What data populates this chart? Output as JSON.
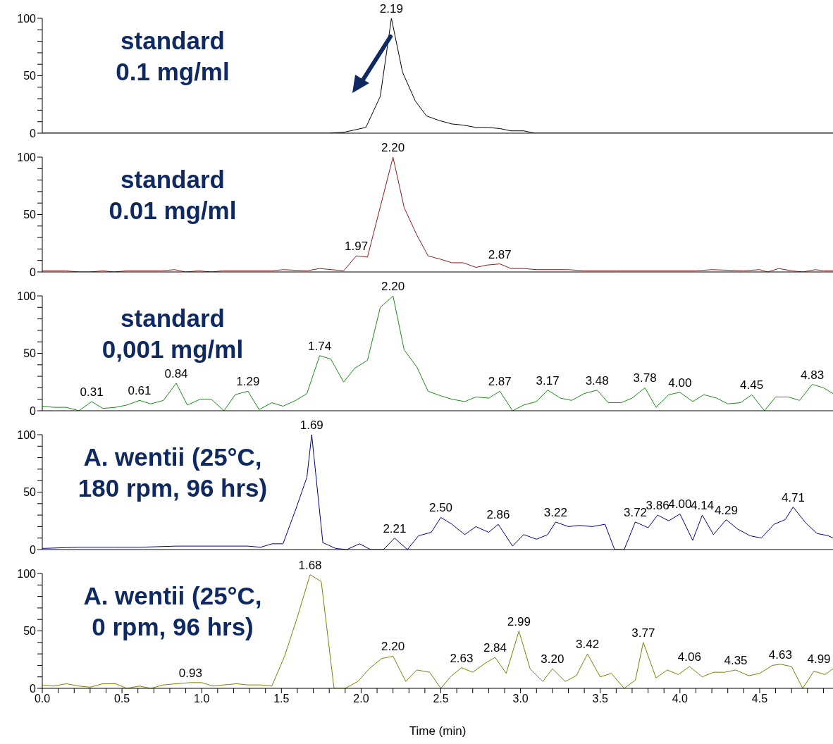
{
  "chart_data": [
    {
      "type": "line",
      "title": "standard\n0.1 mg/ml",
      "tick_labels": "y",
      "xlim": [
        0,
        4.96
      ],
      "ylim": [
        0,
        100
      ],
      "yticks": [
        0,
        {
          "value": 10,
          "label": null
        },
        {
          "value": 20,
          "label": null
        },
        {
          "value": 30,
          "label": null
        },
        {
          "value": 40,
          "label": null
        },
        50,
        {
          "value": 60,
          "label": null
        },
        {
          "value": 70,
          "label": null
        },
        {
          "value": 80,
          "label": null
        },
        {
          "value": 90,
          "label": null
        },
        100
      ],
      "marker": "none",
      "series": [
        {
          "color": "#000000",
          "x": [
            0,
            1.8,
            1.9,
            2.03,
            2.12,
            2.19,
            2.26,
            2.34,
            2.41,
            2.49,
            2.57,
            2.64,
            2.72,
            2.79,
            2.87,
            2.94,
            3.02,
            3.09,
            4.96
          ],
          "values": [
            0,
            0,
            1,
            5,
            32,
            100,
            53,
            28,
            15,
            11,
            8,
            7,
            5,
            5,
            4,
            2,
            2,
            0,
            0
          ]
        }
      ],
      "annotations": [
        {
          "text": "2.19",
          "x": 2.19,
          "y": 100
        }
      ]
    },
    {
      "type": "line",
      "title": "standard\n0.01 mg/ml",
      "tick_labels": "y",
      "xlim": [
        0,
        4.96
      ],
      "ylim": [
        0,
        100
      ],
      "yticks": [
        0,
        {
          "value": 10,
          "label": null
        },
        {
          "value": 20,
          "label": null
        },
        {
          "value": 30,
          "label": null
        },
        {
          "value": 40,
          "label": null
        },
        50,
        {
          "value": 60,
          "label": null
        },
        {
          "value": 70,
          "label": null
        },
        {
          "value": 80,
          "label": null
        },
        {
          "value": 90,
          "label": null
        },
        100
      ],
      "marker": "none",
      "series": [
        {
          "color": "#8b1a1a",
          "x": [
            0,
            0.15,
            0.23,
            0.3,
            0.38,
            0.45,
            0.53,
            0.75,
            0.83,
            0.9,
            0.98,
            1.06,
            1.13,
            1.44,
            1.51,
            1.66,
            1.74,
            1.89,
            1.97,
            2.04,
            2.2,
            2.27,
            2.35,
            2.42,
            2.5,
            2.57,
            2.64,
            2.72,
            2.79,
            2.87,
            2.94,
            3.02,
            3.1,
            3.3,
            3.4,
            3.6,
            4.1,
            4.2,
            4.4,
            4.5,
            4.55,
            4.62,
            4.7,
            4.77,
            4.85,
            4.9,
            4.96
          ],
          "values": [
            1,
            1,
            0,
            0,
            1,
            0,
            1,
            1,
            2,
            0,
            1,
            0,
            1,
            1,
            2,
            1,
            3,
            1,
            14,
            13,
            100,
            56,
            32,
            14,
            11,
            8,
            8,
            4,
            6,
            7,
            3,
            3,
            2,
            2,
            1,
            1,
            1,
            2,
            1,
            2,
            0,
            3,
            1,
            0,
            2,
            1,
            1
          ]
        }
      ],
      "annotations": [
        {
          "text": "1.97",
          "x": 1.97,
          "y": 14
        },
        {
          "text": "2.20",
          "x": 2.2,
          "y": 100
        },
        {
          "text": "2.87",
          "x": 2.87,
          "y": 7
        }
      ]
    },
    {
      "type": "line",
      "title": "standard\n0,001 mg/ml",
      "tick_labels": "y",
      "xlim": [
        0,
        4.96
      ],
      "ylim": [
        0,
        100
      ],
      "yticks": [
        0,
        {
          "value": 10,
          "label": null
        },
        {
          "value": 20,
          "label": null
        },
        {
          "value": 30,
          "label": null
        },
        {
          "value": 40,
          "label": null
        },
        50,
        {
          "value": 60,
          "label": null
        },
        {
          "value": 70,
          "label": null
        },
        {
          "value": 80,
          "label": null
        },
        {
          "value": 90,
          "label": null
        },
        100
      ],
      "marker": "none",
      "series": [
        {
          "color": "#1a8a1a",
          "x": [
            0,
            0.07,
            0.15,
            0.23,
            0.31,
            0.38,
            0.46,
            0.53,
            0.61,
            0.68,
            0.76,
            0.84,
            0.91,
            0.99,
            1.06,
            1.14,
            1.21,
            1.29,
            1.36,
            1.44,
            1.51,
            1.59,
            1.66,
            1.74,
            1.81,
            1.89,
            1.96,
            2.04,
            2.12,
            2.2,
            2.27,
            2.35,
            2.42,
            2.5,
            2.57,
            2.65,
            2.72,
            2.8,
            2.87,
            2.95,
            3.02,
            3.1,
            3.17,
            3.25,
            3.32,
            3.4,
            3.48,
            3.55,
            3.63,
            3.7,
            3.78,
            3.85,
            3.93,
            4.0,
            4.08,
            4.15,
            4.23,
            4.3,
            4.38,
            4.45,
            4.53,
            4.6,
            4.68,
            4.75,
            4.83,
            4.9,
            4.96
          ],
          "values": [
            4,
            3,
            3,
            0,
            8,
            2,
            3,
            5,
            9,
            6,
            9,
            24,
            5,
            10,
            10,
            0,
            14,
            17,
            1,
            7,
            4,
            9,
            15,
            48,
            45,
            25,
            37,
            44,
            90,
            100,
            53,
            38,
            17,
            13,
            10,
            8,
            12,
            11,
            17,
            0,
            5,
            8,
            18,
            11,
            9,
            15,
            18,
            7,
            7,
            11,
            20,
            3,
            14,
            16,
            8,
            14,
            11,
            6,
            7,
            14,
            0,
            12,
            12,
            9,
            23,
            20,
            15
          ]
        }
      ],
      "annotations": [
        {
          "text": "0.31",
          "x": 0.31,
          "y": 8
        },
        {
          "text": "0.61",
          "x": 0.61,
          "y": 9
        },
        {
          "text": "0.84",
          "x": 0.84,
          "y": 24
        },
        {
          "text": "1.29",
          "x": 1.29,
          "y": 17
        },
        {
          "text": "1.74",
          "x": 1.74,
          "y": 48
        },
        {
          "text": "2.20",
          "x": 2.2,
          "y": 100
        },
        {
          "text": "2.87",
          "x": 2.87,
          "y": 17
        },
        {
          "text": "3.17",
          "x": 3.17,
          "y": 18
        },
        {
          "text": "3.48",
          "x": 3.48,
          "y": 18
        },
        {
          "text": "3.78",
          "x": 3.78,
          "y": 20
        },
        {
          "text": "4.00",
          "x": 4.0,
          "y": 16
        },
        {
          "text": "4.45",
          "x": 4.45,
          "y": 14
        },
        {
          "text": "4.83",
          "x": 4.83,
          "y": 23
        }
      ]
    },
    {
      "type": "line",
      "title": "A. wentii (25°C,\n180 rpm, 96 hrs)",
      "tick_labels": "y",
      "xlim": [
        0,
        4.96
      ],
      "ylim": [
        0,
        100
      ],
      "yticks": [
        0,
        {
          "value": 10,
          "label": null
        },
        {
          "value": 20,
          "label": null
        },
        {
          "value": 30,
          "label": null
        },
        {
          "value": 40,
          "label": null
        },
        50,
        {
          "value": 60,
          "label": null
        },
        {
          "value": 70,
          "label": null
        },
        {
          "value": 80,
          "label": null
        },
        {
          "value": 90,
          "label": null
        },
        100
      ],
      "marker": "none",
      "series": [
        {
          "color": "#00008b",
          "x": [
            0,
            0.23,
            0.45,
            0.61,
            0.84,
            1.06,
            1.29,
            1.37,
            1.44,
            1.51,
            1.59,
            1.66,
            1.69,
            1.76,
            1.84,
            1.91,
            1.99,
            2.06,
            2.14,
            2.21,
            2.29,
            2.36,
            2.44,
            2.5,
            2.57,
            2.65,
            2.72,
            2.8,
            2.86,
            2.95,
            3.02,
            3.1,
            3.17,
            3.22,
            3.3,
            3.37,
            3.45,
            3.53,
            3.59,
            3.65,
            3.72,
            3.8,
            3.86,
            3.93,
            4.0,
            4.08,
            4.14,
            4.21,
            4.29,
            4.36,
            4.44,
            4.51,
            4.59,
            4.66,
            4.71,
            4.79,
            4.86,
            4.93,
            4.96
          ],
          "values": [
            1,
            2,
            2,
            2,
            3,
            3,
            3,
            2,
            5,
            5,
            35,
            63,
            100,
            6,
            1,
            0,
            5,
            0,
            0,
            10,
            0,
            12,
            15,
            28,
            22,
            13,
            20,
            15,
            22,
            3,
            13,
            9,
            13,
            24,
            20,
            21,
            20,
            22,
            0,
            0,
            24,
            19,
            30,
            25,
            31,
            8,
            30,
            13,
            26,
            18,
            12,
            10,
            22,
            26,
            37,
            23,
            14,
            12,
            10
          ]
        }
      ],
      "annotations": [
        {
          "text": "1.69",
          "x": 1.69,
          "y": 100
        },
        {
          "text": "2.21",
          "x": 2.21,
          "y": 10
        },
        {
          "text": "2.50",
          "x": 2.5,
          "y": 28
        },
        {
          "text": "2.86",
          "x": 2.86,
          "y": 22
        },
        {
          "text": "3.22",
          "x": 3.22,
          "y": 24
        },
        {
          "text": "3.72",
          "x": 3.72,
          "y": 24
        },
        {
          "text": "3.86",
          "x": 3.86,
          "y": 30
        },
        {
          "text": "4.00",
          "x": 4.0,
          "y": 31
        },
        {
          "text": "4.14",
          "x": 4.14,
          "y": 30
        },
        {
          "text": "4.29",
          "x": 4.29,
          "y": 26
        },
        {
          "text": "4.71",
          "x": 4.71,
          "y": 37
        }
      ]
    },
    {
      "type": "line",
      "title": "A. wentii (25°C,\n0 rpm, 96 hrs)",
      "xlabel": "Time (min)",
      "xlim": [
        0,
        4.96
      ],
      "ylim": [
        0,
        100
      ],
      "yticks": [
        0,
        {
          "value": 10,
          "label": null
        },
        {
          "value": 20,
          "label": null
        },
        {
          "value": 30,
          "label": null
        },
        {
          "value": 40,
          "label": null
        },
        50,
        {
          "value": 60,
          "label": null
        },
        {
          "value": 70,
          "label": null
        },
        {
          "value": 80,
          "label": null
        },
        {
          "value": 90,
          "label": null
        },
        100
      ],
      "marker": "none",
      "xticks": [
        {
          "value": 0,
          "label": "0.0"
        },
        {
          "value": 0.1,
          "label": null
        },
        {
          "value": 0.2,
          "label": null
        },
        {
          "value": 0.3,
          "label": null
        },
        {
          "value": 0.4,
          "label": null
        },
        {
          "value": 0.5,
          "label": "0.5"
        },
        {
          "value": 0.6,
          "label": null
        },
        {
          "value": 0.7,
          "label": null
        },
        {
          "value": 0.8,
          "label": null
        },
        {
          "value": 0.9,
          "label": null
        },
        {
          "value": 1,
          "label": "1.0"
        },
        {
          "value": 1.1,
          "label": null
        },
        {
          "value": 1.2,
          "label": null
        },
        {
          "value": 1.3,
          "label": null
        },
        {
          "value": 1.4,
          "label": null
        },
        {
          "value": 1.5,
          "label": "1.5"
        },
        {
          "value": 1.6,
          "label": null
        },
        {
          "value": 1.7,
          "label": null
        },
        {
          "value": 1.8,
          "label": null
        },
        {
          "value": 1.9,
          "label": null
        },
        {
          "value": 2,
          "label": "2.0"
        },
        {
          "value": 2.1,
          "label": null
        },
        {
          "value": 2.2,
          "label": null
        },
        {
          "value": 2.3,
          "label": null
        },
        {
          "value": 2.4,
          "label": null
        },
        {
          "value": 2.5,
          "label": "2.5"
        },
        {
          "value": 2.6,
          "label": null
        },
        {
          "value": 2.7,
          "label": null
        },
        {
          "value": 2.8,
          "label": null
        },
        {
          "value": 2.9,
          "label": null
        },
        {
          "value": 3,
          "label": "3.0"
        },
        {
          "value": 3.1,
          "label": null
        },
        {
          "value": 3.2,
          "label": null
        },
        {
          "value": 3.3,
          "label": null
        },
        {
          "value": 3.4,
          "label": null
        },
        {
          "value": 3.5,
          "label": "3.5"
        },
        {
          "value": 3.6,
          "label": null
        },
        {
          "value": 3.7,
          "label": null
        },
        {
          "value": 3.8,
          "label": null
        },
        {
          "value": 3.9,
          "label": null
        },
        {
          "value": 4,
          "label": "4.0"
        },
        {
          "value": 4.1,
          "label": null
        },
        {
          "value": 4.2,
          "label": null
        },
        {
          "value": 4.3,
          "label": null
        },
        {
          "value": 4.4,
          "label": null
        },
        {
          "value": 4.5,
          "label": "4.5"
        },
        {
          "value": 4.6,
          "label": null
        },
        {
          "value": 4.7,
          "label": null
        },
        {
          "value": 4.8,
          "label": null
        },
        {
          "value": 4.9,
          "label": null
        }
      ],
      "series": [
        {
          "color": "#808000",
          "x": [
            0,
            0.07,
            0.15,
            0.23,
            0.3,
            0.38,
            0.46,
            0.53,
            0.61,
            0.68,
            0.76,
            0.84,
            0.93,
            1.0,
            1.07,
            1.14,
            1.22,
            1.29,
            1.37,
            1.44,
            1.52,
            1.6,
            1.68,
            1.75,
            1.83,
            1.9,
            1.98,
            2.05,
            2.13,
            2.2,
            2.28,
            2.35,
            2.43,
            2.5,
            2.56,
            2.63,
            2.7,
            2.78,
            2.84,
            2.91,
            2.99,
            3.06,
            3.14,
            3.2,
            3.28,
            3.35,
            3.42,
            3.5,
            3.57,
            3.65,
            3.72,
            3.77,
            3.85,
            3.92,
            3.99,
            4.06,
            4.14,
            4.21,
            4.28,
            4.35,
            4.43,
            4.5,
            4.58,
            4.63,
            4.7,
            4.77,
            4.84,
            4.91,
            4.96
          ],
          "values": [
            3,
            2,
            4,
            2,
            1,
            4,
            4,
            0,
            2,
            0,
            3,
            4,
            5,
            5,
            2,
            3,
            4,
            3,
            3,
            2,
            28,
            62,
            99,
            93,
            0,
            0,
            6,
            17,
            26,
            28,
            6,
            16,
            14,
            0,
            10,
            18,
            14,
            22,
            27,
            13,
            50,
            17,
            6,
            17,
            6,
            11,
            30,
            10,
            13,
            0,
            7,
            40,
            9,
            16,
            12,
            19,
            10,
            14,
            14,
            16,
            11,
            13,
            20,
            21,
            19,
            0,
            15,
            12,
            17
          ]
        }
      ],
      "annotations": [
        {
          "text": "0.93",
          "x": 0.93,
          "y": 5
        },
        {
          "text": "1.68",
          "x": 1.68,
          "y": 99
        },
        {
          "text": "2.20",
          "x": 2.2,
          "y": 28
        },
        {
          "text": "2.63",
          "x": 2.63,
          "y": 18
        },
        {
          "text": "2.84",
          "x": 2.84,
          "y": 27
        },
        {
          "text": "2.99",
          "x": 2.99,
          "y": 50
        },
        {
          "text": "3.20",
          "x": 3.2,
          "y": 17
        },
        {
          "text": "3.42",
          "x": 3.42,
          "y": 30
        },
        {
          "text": "3.77",
          "x": 3.77,
          "y": 40
        },
        {
          "text": "4.06",
          "x": 4.06,
          "y": 19
        },
        {
          "text": "4.35",
          "x": 4.35,
          "y": 16
        },
        {
          "text": "4.63",
          "x": 4.63,
          "y": 21
        },
        {
          "text": "4.99",
          "x": 4.96,
          "y": 17
        }
      ]
    }
  ]
}
